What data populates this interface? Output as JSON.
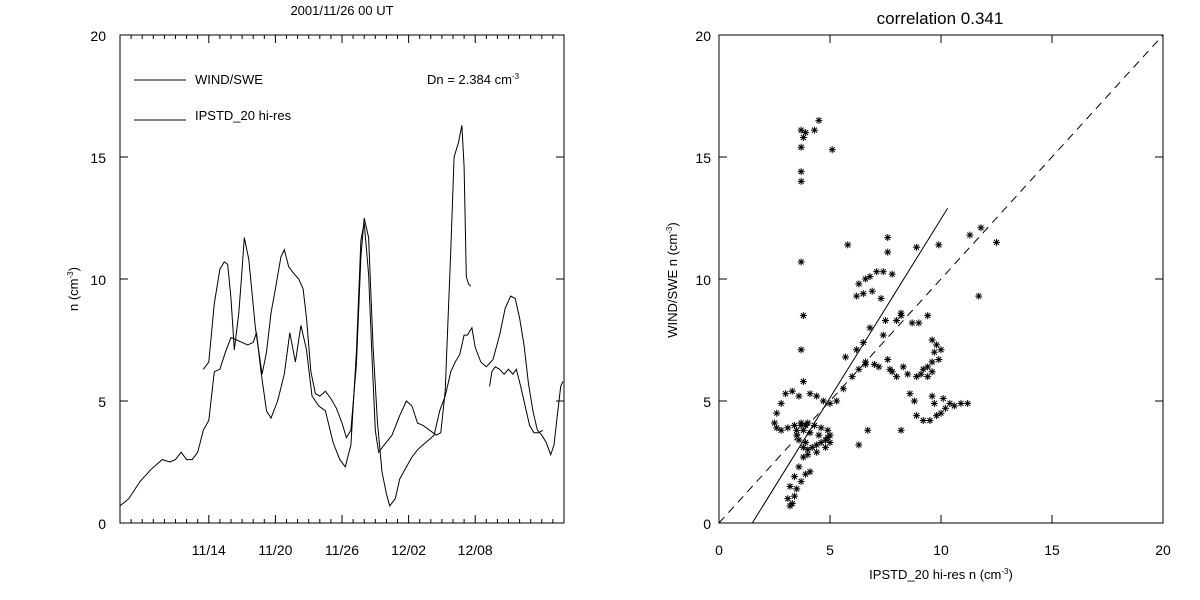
{
  "chart_data": [
    {
      "type": "line",
      "title": "2001/11/26 00 UT",
      "ylabel_main": "n (cm",
      "ylabel_sup": "-3",
      "ylabel_close": ")",
      "ylim": [
        0,
        20
      ],
      "yticks": [
        0,
        5,
        10,
        15,
        20
      ],
      "xlim": [
        0,
        40
      ],
      "xtick_positions": [
        8,
        14,
        20,
        26,
        32
      ],
      "xtick_labels": [
        "11/14",
        "11/20",
        "11/26",
        "12/02",
        "12/08"
      ],
      "legend_placement": "top-left",
      "annotation_main": "Dn = 2.384 cm",
      "annotation_sup": "-3",
      "series": [
        {
          "name": "WIND/SWE",
          "points": [
            [
              0,
              0.7
            ],
            [
              0.8,
              1.0
            ],
            [
              1.8,
              1.7
            ],
            [
              2.8,
              2.2
            ],
            [
              3.8,
              2.6
            ],
            [
              4.5,
              2.5
            ],
            [
              5,
              2.6
            ],
            [
              5.5,
              2.9
            ],
            [
              6,
              2.6
            ],
            [
              6.5,
              2.6
            ],
            [
              7,
              2.9
            ],
            [
              7.5,
              3.8
            ],
            [
              8,
              4.2
            ],
            [
              8.5,
              6.2
            ],
            [
              9,
              6.3
            ],
            [
              9.5,
              7.0
            ],
            [
              10,
              7.6
            ],
            [
              10.5,
              7.5
            ],
            [
              11,
              7.4
            ],
            [
              11.5,
              7.3
            ],
            [
              12,
              7.4
            ],
            [
              12.3,
              7.8
            ],
            [
              12.7,
              6.2
            ],
            [
              13.2,
              4.6
            ],
            [
              13.6,
              4.3
            ],
            [
              14.2,
              5.0
            ],
            [
              14.8,
              6.1
            ],
            [
              15.3,
              7.8
            ],
            [
              15.8,
              6.6
            ],
            [
              16.3,
              8.1
            ],
            [
              16.8,
              7.1
            ],
            [
              17.3,
              5.2
            ],
            [
              17.9,
              4.8
            ],
            [
              18.5,
              4.6
            ],
            [
              19.2,
              3.3
            ],
            [
              19.8,
              2.6
            ],
            [
              20.3,
              2.3
            ],
            [
              20.8,
              3.2
            ],
            [
              21.3,
              7.0
            ],
            [
              21.7,
              11.6
            ],
            [
              22.0,
              12.3
            ],
            [
              22.4,
              10.2
            ],
            [
              22.7,
              6.8
            ],
            [
              23.0,
              3.8
            ],
            [
              23.3,
              2.9
            ],
            [
              23.8,
              3.2
            ],
            [
              24.5,
              3.6
            ],
            [
              25.2,
              4.4
            ],
            [
              25.8,
              5.0
            ],
            [
              26.3,
              4.8
            ],
            [
              26.8,
              4.1
            ],
            [
              27.3,
              4.0
            ],
            [
              27.9,
              3.8
            ],
            [
              28.5,
              3.6
            ],
            [
              28.9,
              3.7
            ],
            [
              29.3,
              5.4
            ],
            [
              29.8,
              11.2
            ],
            [
              30.1,
              15.0
            ],
            [
              30.5,
              15.6
            ],
            [
              30.8,
              16.3
            ],
            [
              31.0,
              14.6
            ],
            [
              31.2,
              10.1
            ],
            [
              31.4,
              9.8
            ],
            [
              31.6,
              9.7
            ]
          ]
        },
        {
          "name": "IPSTD_20 hi-res",
          "points": [
            [
              7.5,
              6.3
            ],
            [
              8,
              6.6
            ],
            [
              8.5,
              9.0
            ],
            [
              9,
              10.4
            ],
            [
              9.4,
              10.7
            ],
            [
              9.7,
              10.6
            ],
            [
              10,
              9.2
            ],
            [
              10.3,
              7.1
            ],
            [
              10.7,
              8.6
            ],
            [
              11.0,
              10.4
            ],
            [
              11.2,
              11.7
            ],
            [
              11.6,
              10.8
            ],
            [
              12.2,
              8.0
            ],
            [
              12.8,
              6.1
            ],
            [
              13.2,
              7.0
            ],
            [
              13.6,
              8.6
            ],
            [
              14.0,
              9.6
            ],
            [
              14.5,
              10.9
            ],
            [
              14.8,
              11.2
            ],
            [
              15.2,
              10.5
            ],
            [
              15.7,
              10.2
            ],
            [
              16.1,
              10.0
            ],
            [
              16.5,
              9.6
            ],
            [
              16.8,
              8.4
            ],
            [
              17.2,
              6.2
            ],
            [
              17.6,
              5.3
            ],
            [
              18.0,
              5.2
            ],
            [
              18.5,
              5.4
            ],
            [
              19.0,
              5.1
            ],
            [
              19.5,
              4.7
            ],
            [
              20.0,
              4.1
            ],
            [
              20.4,
              3.5
            ],
            [
              20.8,
              3.8
            ],
            [
              21.3,
              6.5
            ],
            [
              21.7,
              10.9
            ],
            [
              22.0,
              12.5
            ],
            [
              22.4,
              11.7
            ],
            [
              22.8,
              7.2
            ],
            [
              23.2,
              4.1
            ],
            [
              23.6,
              2.1
            ],
            [
              24.0,
              1.2
            ],
            [
              24.3,
              0.7
            ],
            [
              24.8,
              1.0
            ],
            [
              25.2,
              1.8
            ],
            [
              25.8,
              2.3
            ],
            [
              26.3,
              2.7
            ],
            [
              26.8,
              3.0
            ],
            [
              27.3,
              3.2
            ],
            [
              27.8,
              3.4
            ],
            [
              28.3,
              3.6
            ],
            [
              28.8,
              4.6
            ],
            [
              29.3,
              5.2
            ],
            [
              29.8,
              6.2
            ],
            [
              30.2,
              6.6
            ],
            [
              30.6,
              6.9
            ],
            [
              31.0,
              7.7
            ],
            [
              31.3,
              7.7
            ],
            [
              31.7,
              8.0
            ],
            [
              32.0,
              7.2
            ],
            [
              32.5,
              6.6
            ],
            [
              33.0,
              6.4
            ],
            [
              33.6,
              6.7
            ],
            [
              34.2,
              7.7
            ],
            [
              34.7,
              8.8
            ],
            [
              35.2,
              9.3
            ],
            [
              35.6,
              9.2
            ],
            [
              36.0,
              8.4
            ],
            [
              36.4,
              7.3
            ],
            [
              36.8,
              5.7
            ],
            [
              37.2,
              4.6
            ],
            [
              37.6,
              3.8
            ],
            [
              38.0,
              3.6
            ],
            [
              38.4,
              3.3
            ],
            [
              38.8,
              2.8
            ],
            [
              39.1,
              3.2
            ],
            [
              39.4,
              4.4
            ],
            [
              39.7,
              5.6
            ],
            [
              39.9,
              5.8
            ]
          ]
        },
        {
          "name": "",
          "points": [
            [
              33.3,
              5.6
            ],
            [
              33.5,
              6.2
            ],
            [
              33.8,
              6.4
            ],
            [
              34.2,
              6.3
            ],
            [
              34.6,
              6.1
            ],
            [
              35.0,
              6.3
            ],
            [
              35.4,
              6.1
            ],
            [
              35.7,
              6.3
            ],
            [
              36.1,
              5.6
            ],
            [
              36.5,
              4.8
            ],
            [
              36.9,
              4.0
            ],
            [
              37.3,
              3.7
            ],
            [
              37.7,
              3.7
            ],
            [
              38.1,
              3.8
            ]
          ]
        }
      ]
    },
    {
      "type": "scatter",
      "title": "correlation 0.341",
      "xlabel_main": "IPSTD_20 hi-res n (cm",
      "xlabel_sup": "-3",
      "xlabel_close": ")",
      "ylabel_main": "WIND/SWE n (cm",
      "ylabel_sup": "-3",
      "ylabel_close": ")",
      "xlim": [
        0,
        20
      ],
      "ylim": [
        0,
        20
      ],
      "ticks": [
        0,
        5,
        10,
        15,
        20
      ],
      "grid": false,
      "fit_line": [
        [
          1.5,
          0
        ],
        [
          10.3,
          12.9
        ]
      ],
      "identity_line": [
        [
          0,
          0
        ],
        [
          20,
          20
        ]
      ],
      "points": [
        [
          3.7,
          16.1
        ],
        [
          3.7,
          15.4
        ],
        [
          3.7,
          14.4
        ],
        [
          3.7,
          14.0
        ],
        [
          3.8,
          15.8
        ],
        [
          3.9,
          16.0
        ],
        [
          4.3,
          16.1
        ],
        [
          4.5,
          16.5
        ],
        [
          5.1,
          15.3
        ],
        [
          3.7,
          10.7
        ],
        [
          3.8,
          8.5
        ],
        [
          3.7,
          7.1
        ],
        [
          3.8,
          5.8
        ],
        [
          3.6,
          5.2
        ],
        [
          3.3,
          5.4
        ],
        [
          3.0,
          5.3
        ],
        [
          2.8,
          4.9
        ],
        [
          2.6,
          4.5
        ],
        [
          2.5,
          4.1
        ],
        [
          2.6,
          3.9
        ],
        [
          2.8,
          3.8
        ],
        [
          3.1,
          3.9
        ],
        [
          3.4,
          4.0
        ],
        [
          3.7,
          4.1
        ],
        [
          4.0,
          4.1
        ],
        [
          4.3,
          4.0
        ],
        [
          4.6,
          3.9
        ],
        [
          4.9,
          3.8
        ],
        [
          5.0,
          3.6
        ],
        [
          4.8,
          3.4
        ],
        [
          4.6,
          3.3
        ],
        [
          4.4,
          3.2
        ],
        [
          4.2,
          3.1
        ],
        [
          4.0,
          3.0
        ],
        [
          3.8,
          3.1
        ],
        [
          3.6,
          3.4
        ],
        [
          3.5,
          3.6
        ],
        [
          3.5,
          3.8
        ],
        [
          3.7,
          4.0
        ],
        [
          4.1,
          3.7
        ],
        [
          4.5,
          3.6
        ],
        [
          4.9,
          3.5
        ],
        [
          5.0,
          3.3
        ],
        [
          4.8,
          3.1
        ],
        [
          4.4,
          2.9
        ],
        [
          4.0,
          2.8
        ],
        [
          3.8,
          2.7
        ],
        [
          3.6,
          2.3
        ],
        [
          3.4,
          1.9
        ],
        [
          3.2,
          1.5
        ],
        [
          3.1,
          1.0
        ],
        [
          3.2,
          0.7
        ],
        [
          3.3,
          0.8
        ],
        [
          3.4,
          1.1
        ],
        [
          3.5,
          1.4
        ],
        [
          3.7,
          1.7
        ],
        [
          3.9,
          2.0
        ],
        [
          4.1,
          2.1
        ],
        [
          3.9,
          3.3
        ],
        [
          3.8,
          3.8
        ],
        [
          3.9,
          4.0
        ],
        [
          4.1,
          5.3
        ],
        [
          4.4,
          5.2
        ],
        [
          4.7,
          5.0
        ],
        [
          5.0,
          4.9
        ],
        [
          5.3,
          5.0
        ],
        [
          5.6,
          5.5
        ],
        [
          6.0,
          6.0
        ],
        [
          6.3,
          6.3
        ],
        [
          6.6,
          6.6
        ],
        [
          5.7,
          6.8
        ],
        [
          5.8,
          11.4
        ],
        [
          6.3,
          9.8
        ],
        [
          6.2,
          9.3
        ],
        [
          6.5,
          9.4
        ],
        [
          6.6,
          10.0
        ],
        [
          6.8,
          10.1
        ],
        [
          7.1,
          10.3
        ],
        [
          6.9,
          9.5
        ],
        [
          6.8,
          8.0
        ],
        [
          6.5,
          7.4
        ],
        [
          6.2,
          7.1
        ],
        [
          6.6,
          6.5
        ],
        [
          7.0,
          6.5
        ],
        [
          7.2,
          6.4
        ],
        [
          7.3,
          9.2
        ],
        [
          7.6,
          11.1
        ],
        [
          7.6,
          11.7
        ],
        [
          7.4,
          10.3
        ],
        [
          7.8,
          10.2
        ],
        [
          7.5,
          8.3
        ],
        [
          7.4,
          7.7
        ],
        [
          7.6,
          6.7
        ],
        [
          7.7,
          6.3
        ],
        [
          7.8,
          6.2
        ],
        [
          8.0,
          6.0
        ],
        [
          8.2,
          8.6
        ],
        [
          8.3,
          6.4
        ],
        [
          8.5,
          6.1
        ],
        [
          8.9,
          6.0
        ],
        [
          9.1,
          6.1
        ],
        [
          9.2,
          6.3
        ],
        [
          9.4,
          6.0
        ],
        [
          8.6,
          5.3
        ],
        [
          8.8,
          5.0
        ],
        [
          8.9,
          4.4
        ],
        [
          9.2,
          4.2
        ],
        [
          9.5,
          4.2
        ],
        [
          9.8,
          4.4
        ],
        [
          10.0,
          4.5
        ],
        [
          10.2,
          4.7
        ],
        [
          10.4,
          4.9
        ],
        [
          10.6,
          4.8
        ],
        [
          10.9,
          4.9
        ],
        [
          9.6,
          5.2
        ],
        [
          9.7,
          4.9
        ],
        [
          10.1,
          5.1
        ],
        [
          9.4,
          6.4
        ],
        [
          9.6,
          6.6
        ],
        [
          9.7,
          7.0
        ],
        [
          9.8,
          7.3
        ],
        [
          10.0,
          7.1
        ],
        [
          9.9,
          6.7
        ],
        [
          9.6,
          6.2
        ],
        [
          9.6,
          7.5
        ],
        [
          9.4,
          8.5
        ],
        [
          9.0,
          8.2
        ],
        [
          8.7,
          8.2
        ],
        [
          8.2,
          8.5
        ],
        [
          8.0,
          8.3
        ],
        [
          8.9,
          11.3
        ],
        [
          9.9,
          11.4
        ],
        [
          11.3,
          11.8
        ],
        [
          11.8,
          12.1
        ],
        [
          12.5,
          11.5
        ],
        [
          11.7,
          9.3
        ],
        [
          11.2,
          4.9
        ],
        [
          8.2,
          3.8
        ],
        [
          6.7,
          3.8
        ],
        [
          6.3,
          3.2
        ]
      ]
    }
  ]
}
